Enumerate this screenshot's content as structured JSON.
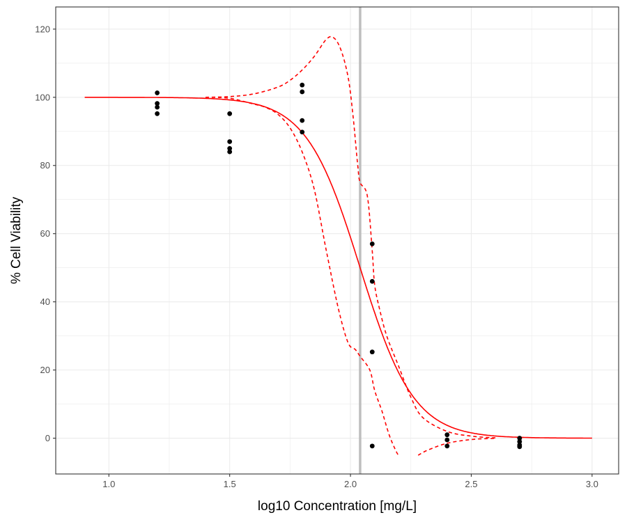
{
  "chart_data": {
    "type": "scatter",
    "title": "",
    "xlabel": "log10 Concentration [mg/L]",
    "ylabel": "% Cell Viability",
    "xlim": [
      0.78,
      3.11
    ],
    "ylim": [
      -10.5,
      126.5
    ],
    "x_ticks": [
      1.0,
      1.5,
      2.0,
      2.5,
      3.0
    ],
    "x_tick_labels": [
      "1.0",
      "1.5",
      "2.0",
      "2.5",
      "3.0"
    ],
    "y_ticks": [
      0,
      20,
      40,
      60,
      80,
      100,
      120
    ],
    "y_tick_labels": [
      "0",
      "20",
      "40",
      "60",
      "80",
      "100",
      "120"
    ],
    "grid": true,
    "colors": {
      "points": "#000000",
      "fit": "#ff0000",
      "vline": "#bebebe",
      "grid": "#ebebeb"
    },
    "points": [
      {
        "x": 1.2,
        "y": 101.3
      },
      {
        "x": 1.2,
        "y": 98.2
      },
      {
        "x": 1.2,
        "y": 97.1
      },
      {
        "x": 1.2,
        "y": 95.2
      },
      {
        "x": 1.5,
        "y": 95.2
      },
      {
        "x": 1.5,
        "y": 87.0
      },
      {
        "x": 1.5,
        "y": 85.0
      },
      {
        "x": 1.5,
        "y": 84.0
      },
      {
        "x": 1.8,
        "y": 103.6
      },
      {
        "x": 1.8,
        "y": 101.6
      },
      {
        "x": 1.8,
        "y": 93.2
      },
      {
        "x": 1.8,
        "y": 89.8
      },
      {
        "x": 2.09,
        "y": 57.0
      },
      {
        "x": 2.09,
        "y": 46.0
      },
      {
        "x": 2.09,
        "y": 25.3
      },
      {
        "x": 2.09,
        "y": -2.3
      },
      {
        "x": 2.4,
        "y": 1.0
      },
      {
        "x": 2.4,
        "y": -0.5
      },
      {
        "x": 2.4,
        "y": -2.3
      },
      {
        "x": 2.7,
        "y": 0.0
      },
      {
        "x": 2.7,
        "y": -1.0
      },
      {
        "x": 2.7,
        "y": -2.0
      },
      {
        "x": 2.7,
        "y": -2.5
      }
    ],
    "fit": {
      "x_range": [
        0.9,
        3.0
      ],
      "top": 100,
      "bottom": 0,
      "ec50_log10": 2.04,
      "slope": 9.0
    },
    "confidence_bands": {
      "upper": [
        [
          1.4,
          100
        ],
        [
          1.5,
          100.2
        ],
        [
          1.6,
          101
        ],
        [
          1.7,
          103
        ],
        [
          1.75,
          105
        ],
        [
          1.8,
          108
        ],
        [
          1.85,
          112
        ],
        [
          1.9,
          117
        ],
        [
          1.93,
          117.5
        ],
        [
          1.96,
          114
        ],
        [
          1.99,
          106
        ],
        [
          2.01,
          95
        ],
        [
          2.03,
          80
        ],
        [
          2.04,
          75
        ],
        [
          2.07,
          71
        ],
        [
          2.09,
          55
        ],
        [
          2.1,
          45
        ],
        [
          2.12,
          38
        ],
        [
          2.15,
          30
        ],
        [
          2.2,
          21
        ],
        [
          2.25,
          12
        ],
        [
          2.3,
          6
        ],
        [
          2.4,
          2
        ],
        [
          2.5,
          0.6
        ],
        [
          2.6,
          0.1
        ]
      ],
      "lower": [
        [
          1.4,
          100
        ],
        [
          1.5,
          99.7
        ],
        [
          1.6,
          98
        ],
        [
          1.65,
          97
        ],
        [
          1.7,
          95
        ],
        [
          1.75,
          91
        ],
        [
          1.8,
          84
        ],
        [
          1.85,
          73
        ],
        [
          1.9,
          55
        ],
        [
          1.95,
          38
        ],
        [
          1.99,
          28
        ],
        [
          2.02,
          26
        ],
        [
          2.04,
          24
        ],
        [
          2.08,
          20
        ],
        [
          2.1,
          14
        ],
        [
          2.13,
          8
        ],
        [
          2.16,
          1
        ],
        [
          2.19,
          -4
        ],
        [
          2.2,
          -5
        ]
      ],
      "lower_tail": [
        [
          2.28,
          -5
        ],
        [
          2.32,
          -3.5
        ],
        [
          2.4,
          -1.5
        ],
        [
          2.5,
          -0.4
        ],
        [
          2.6,
          -0.05
        ]
      ]
    },
    "vline_x": 2.04
  }
}
